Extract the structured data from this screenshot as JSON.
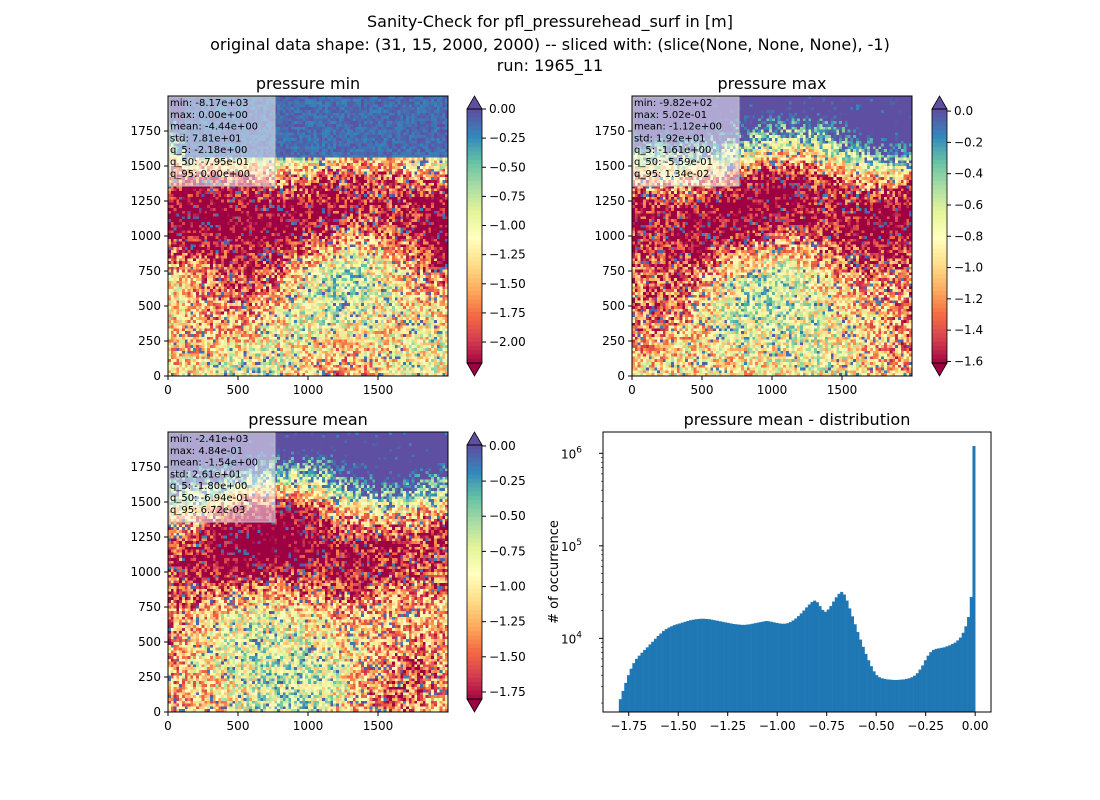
{
  "suptitle": [
    "Sanity-Check for pfl_pressurehead_surf in [m]",
    "original data shape: (31, 15, 2000, 2000) -- sliced with: (slice(None, None, None), -1)",
    "run: 1965_11"
  ],
  "colors": {
    "spectral": [
      "#9e0142",
      "#d53e4f",
      "#f46d43",
      "#fdae61",
      "#fee08b",
      "#ffffbf",
      "#e6f598",
      "#abdda4",
      "#66c2a5",
      "#3288bd",
      "#5e4fa2"
    ],
    "bar": "#1f77b4"
  },
  "maps": [
    {
      "title": "pressure min",
      "xticks": [
        0,
        500,
        1000,
        1500
      ],
      "yticks": [
        0,
        250,
        500,
        750,
        1000,
        1250,
        1500,
        1750
      ],
      "stats": [
        "min: -8.17e+03",
        "max: 0.00e+00",
        "mean: -4.44e+00",
        "std: 7.81e+01",
        "q_5: -2.18e+00",
        "q_50: -7.95e-01",
        "q_95: 0.00e+00"
      ],
      "colorbar": {
        "vmin": -2.18,
        "vmax": 0.0,
        "ticks": [
          "0.00",
          "-0.25",
          "-0.50",
          "-0.75",
          "-1.00",
          "-1.25",
          "-1.50",
          "-1.75",
          "-2.00"
        ],
        "extend": "both"
      }
    },
    {
      "title": "pressure max",
      "xticks": [
        0,
        500,
        1000,
        1500
      ],
      "yticks": [
        0,
        250,
        500,
        750,
        1000,
        1250,
        1500,
        1750
      ],
      "stats": [
        "min: -9.82e+02",
        "max: 5.02e-01",
        "mean: -1.12e+00",
        "std: 1.92e+01",
        "q_5: -1.61e+00",
        "q_50: -5.59e-01",
        "q_95: 1.34e-02"
      ],
      "colorbar": {
        "vmin": -1.61,
        "vmax": 0.0134,
        "ticks": [
          "0.0",
          "-0.2",
          "-0.4",
          "-0.6",
          "-0.8",
          "-1.0",
          "-1.2",
          "-1.4",
          "-1.6"
        ],
        "extend": "both"
      }
    },
    {
      "title": "pressure mean",
      "xticks": [
        0,
        500,
        1000,
        1500
      ],
      "yticks": [
        0,
        250,
        500,
        750,
        1000,
        1250,
        1500,
        1750
      ],
      "stats": [
        "min: -2.41e+03",
        "max: 4.84e-01",
        "mean: -1.54e+00",
        "std: 2.61e+01",
        "q_5: -1.80e+00",
        "q_50: -6.94e-01",
        "q_95: 6.72e-03"
      ],
      "colorbar": {
        "vmin": -1.8,
        "vmax": 0.00672,
        "ticks": [
          "0.00",
          "-0.25",
          "-0.50",
          "-0.75",
          "-1.00",
          "-1.25",
          "-1.50",
          "-1.75"
        ],
        "extend": "both"
      }
    }
  ],
  "chart_data": {
    "type": "bar",
    "title": "pressure mean - distribution",
    "xlabel": "",
    "ylabel": "# of occurrence",
    "yscale": "log",
    "xlim": [
      -1.88,
      0.08
    ],
    "ylim": [
      1600,
      1700000
    ],
    "xticks": [
      -1.75,
      -1.5,
      -1.25,
      -1.0,
      -0.75,
      -0.5,
      -0.25,
      0.0
    ],
    "xtick_labels": [
      "−1.75",
      "−1.50",
      "−1.25",
      "−1.00",
      "−0.75",
      "−0.50",
      "−0.25",
      "0.00"
    ],
    "yticks": [
      10000,
      100000,
      1000000
    ],
    "ytick_base": "10",
    "ytick_exponents": [
      "4",
      "5",
      "6"
    ],
    "bin_edges_range": [
      -1.8,
      0.0
    ],
    "values": [
      2200,
      2700,
      3300,
      4000,
      4700,
      5400,
      6000,
      6500,
      7000,
      7500,
      8000,
      8600,
      9200,
      9900,
      10600,
      11300,
      12000,
      12600,
      13100,
      13500,
      13900,
      14200,
      14500,
      14800,
      15100,
      15400,
      15700,
      15900,
      16100,
      16200,
      16300,
      16300,
      16200,
      16100,
      15900,
      15700,
      15500,
      15300,
      15100,
      14900,
      14700,
      14500,
      14300,
      14200,
      14100,
      14000,
      14000,
      14100,
      14200,
      14400,
      14600,
      14800,
      15000,
      15200,
      15400,
      15300,
      15100,
      14900,
      14700,
      14500,
      14400,
      14400,
      14600,
      15000,
      15600,
      16400,
      17400,
      18600,
      20000,
      21600,
      23200,
      24700,
      25600,
      24600,
      22300,
      20300,
      19400,
      20500,
      22400,
      25000,
      27800,
      30300,
      31800,
      29800,
      25600,
      21100,
      17300,
      14200,
      11700,
      9700,
      8100,
      6800,
      5800,
      5000,
      4400,
      4000,
      3800,
      3700,
      3650,
      3600,
      3580,
      3560,
      3550,
      3560,
      3580,
      3600,
      3650,
      3700,
      3800,
      3950,
      4200,
      4600,
      5100,
      5800,
      6500,
      7100,
      7500,
      7700,
      7800,
      7900,
      8000,
      8200,
      8400,
      8700,
      9000,
      9500,
      10200,
      11500,
      13500,
      17000,
      28000,
      1200000
    ]
  }
}
